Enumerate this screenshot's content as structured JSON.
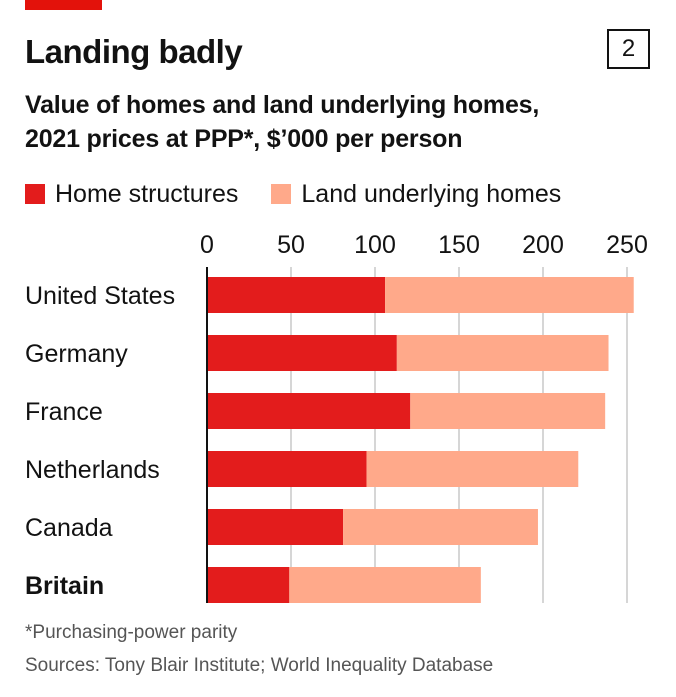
{
  "chart_number": "2",
  "title": "Landing badly",
  "subtitle_lines": [
    "Value of homes and land underlying homes,",
    "2021 prices at PPP*, $’000 per person"
  ],
  "colors": {
    "accent": "#e3120b",
    "structures": "#e31c1c",
    "land": "#ffa98a",
    "grid": "#c8c8c8",
    "axis": "#121212"
  },
  "legend": [
    {
      "label": "Home structures",
      "color": "#e31c1c"
    },
    {
      "label": "Land underlying homes",
      "color": "#ffa98a"
    }
  ],
  "chart_data": {
    "type": "bar",
    "orientation": "horizontal",
    "stacked": true,
    "categories": [
      "United States",
      "Germany",
      "France",
      "Netherlands",
      "Canada",
      "Britain"
    ],
    "highlighted_category": "Britain",
    "series": [
      {
        "name": "Home structures",
        "values": [
          106,
          113,
          121,
          95,
          81,
          49
        ]
      },
      {
        "name": "Land underlying homes",
        "values": [
          148,
          126,
          116,
          126,
          116,
          114
        ]
      }
    ],
    "xticks": [
      0,
      50,
      100,
      150,
      200,
      250
    ],
    "xlim": [
      0,
      255
    ],
    "grid": true,
    "axis_position": "top"
  },
  "footnote": "*Purchasing-power parity",
  "sources": "Sources: Tony Blair Institute; World Inequality Database"
}
